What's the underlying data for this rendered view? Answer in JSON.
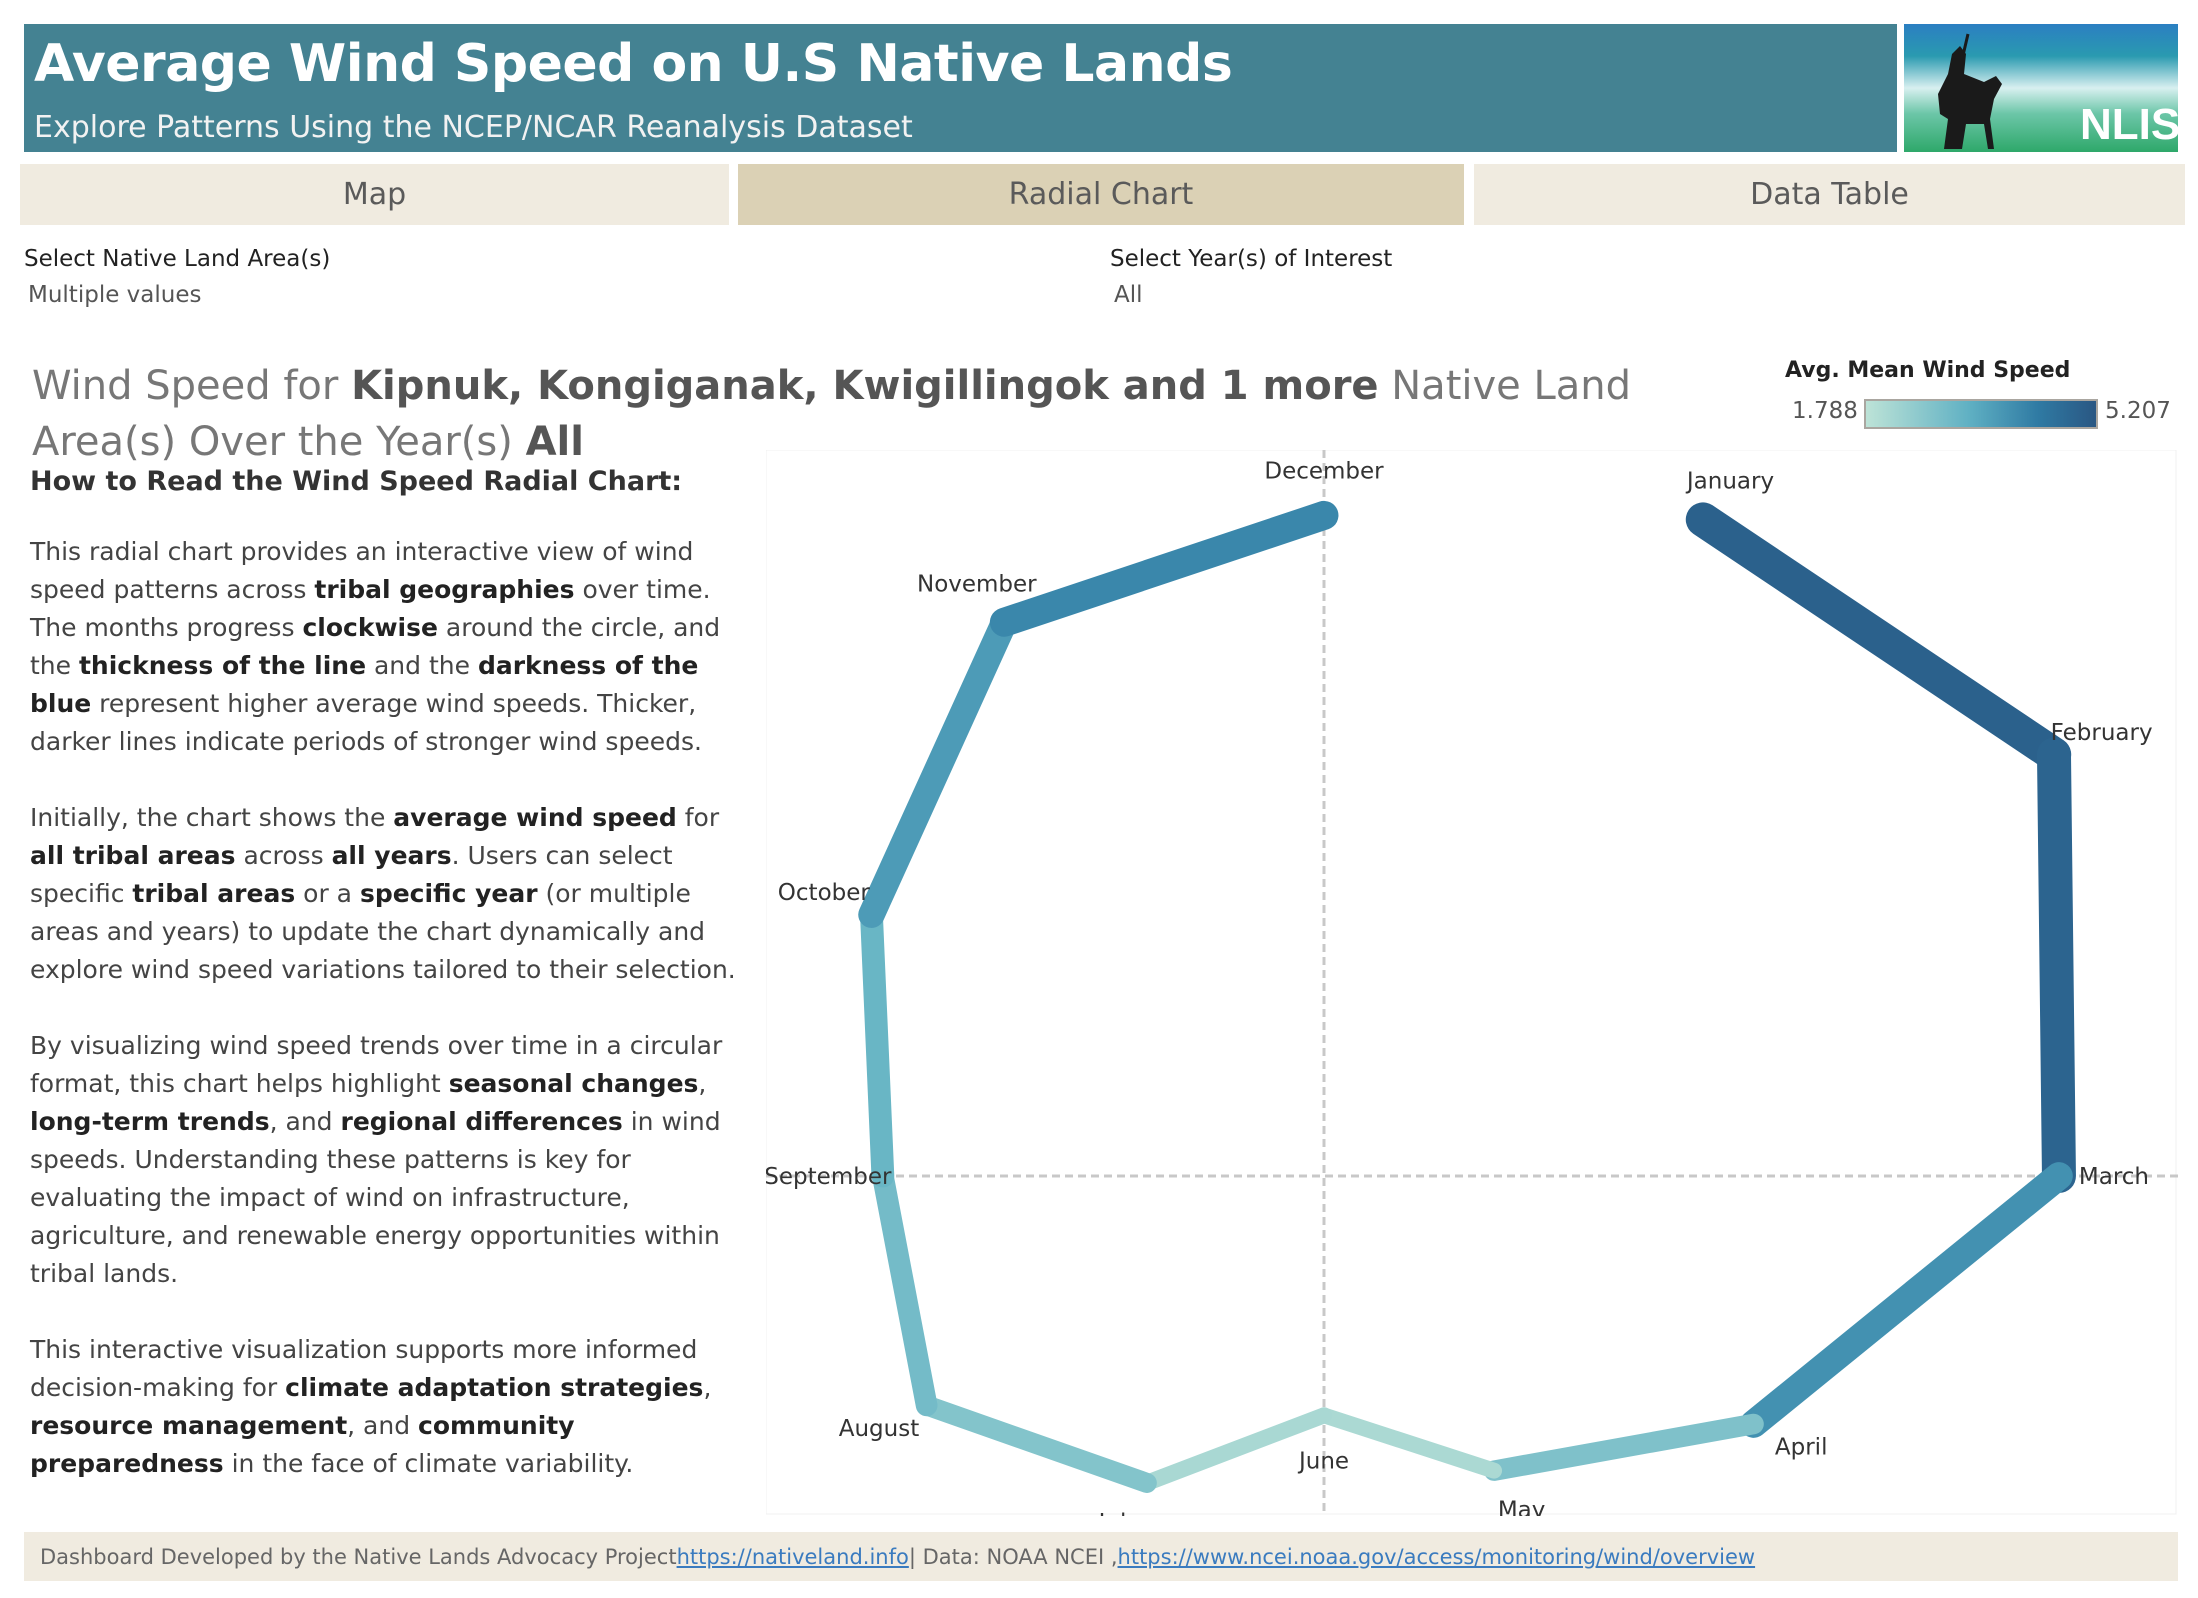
{
  "header": {
    "title": "Average Wind Speed on U.S Native Lands",
    "subtitle": "Explore Patterns Using the NCEP/NCAR Reanalysis Dataset",
    "logo_text": "NLIS"
  },
  "tabs": [
    {
      "label": "Map",
      "active": false
    },
    {
      "label": "Radial Chart",
      "active": true
    },
    {
      "label": "Data Table",
      "active": false
    }
  ],
  "filters": {
    "land": {
      "label": "Select Native Land Area(s)",
      "value": "Multiple values"
    },
    "year": {
      "label": "Select Year(s) of Interest",
      "value": "All"
    }
  },
  "title": {
    "p1": "Wind Speed for ",
    "areas": "Kipnuk, Kongiganak, Kwigillingok and 1 more",
    "p2": " Native Land Area(s) Over the Year(s) ",
    "years": "All"
  },
  "legend": {
    "title": "Avg. Mean Wind Speed",
    "min": "1.788",
    "max": "5.207",
    "colors": [
      "#bde3d7",
      "#5fb0c3",
      "#2f7aa3",
      "#2a5783"
    ]
  },
  "howto": {
    "heading": "How to Read the Wind Speed Radial Chart:",
    "paragraphs": [
      [
        {
          "t": "This radial chart provides an interactive view of wind speed patterns across "
        },
        {
          "t": "tribal geographies",
          "b": true
        },
        {
          "t": " over time. The months progress "
        },
        {
          "t": "clockwise",
          "b": true
        },
        {
          "t": " around the circle, and the "
        },
        {
          "t": "thickness of the line",
          "b": true
        },
        {
          "t": " and the "
        },
        {
          "t": "darkness of the blue",
          "b": true
        },
        {
          "t": " represent higher average wind speeds. Thicker, darker lines indicate periods of stronger wind speeds."
        }
      ],
      [
        {
          "t": "Initially, the chart shows the "
        },
        {
          "t": "average wind speed",
          "b": true
        },
        {
          "t": " for "
        },
        {
          "t": "all tribal areas",
          "b": true
        },
        {
          "t": " across "
        },
        {
          "t": "all years",
          "b": true
        },
        {
          "t": ". Users can select specific "
        },
        {
          "t": "tribal areas",
          "b": true
        },
        {
          "t": " or a "
        },
        {
          "t": "specific year",
          "b": true
        },
        {
          "t": " (or multiple areas and years) to update the chart dynamically and explore wind speed variations tailored to their selection."
        }
      ],
      [
        {
          "t": "By visualizing wind speed trends over time in a circular format, this chart helps highlight "
        },
        {
          "t": "seasonal changes",
          "b": true
        },
        {
          "t": ", "
        },
        {
          "t": "long-term trends",
          "b": true
        },
        {
          "t": ", and "
        },
        {
          "t": "regional differences",
          "b": true
        },
        {
          "t": " in wind speeds. Understanding these patterns is key for evaluating the impact of wind on infrastructure, agriculture, and renewable energy opportunities within tribal lands."
        }
      ],
      [
        {
          "t": "This interactive visualization supports more informed decision-making for "
        },
        {
          "t": "climate adaptation strategies",
          "b": true
        },
        {
          "t": ", "
        },
        {
          "t": "resource management",
          "b": true
        },
        {
          "t": ", and "
        },
        {
          "t": "community preparedness",
          "b": true
        },
        {
          "t": " in the face of climate variability."
        }
      ]
    ]
  },
  "chart_data": {
    "type": "radial-line",
    "title": "Wind Speed Radial Chart",
    "metric": "Avg. Mean Wind Speed",
    "categories": [
      "January",
      "February",
      "March",
      "April",
      "May",
      "June",
      "July",
      "August",
      "September",
      "October",
      "November",
      "December"
    ],
    "values": [
      4.72,
      5.2,
      4.59,
      3.24,
      2.36,
      1.79,
      2.44,
      3.03,
      2.93,
      3.39,
      4.05,
      4.17
    ],
    "color_range": [
      1.788,
      5.207
    ],
    "direction": "clockwise",
    "gridlines": "crosshair"
  },
  "footer": {
    "text1": "Dashboard Developed by the Native Lands Advocacy Project ",
    "link1": "https://nativeland.info",
    "text2": " | Data: NOAA NCEI , ",
    "link2": "https://www.ncei.noaa.gov/access/monitoring/wind/overview"
  }
}
